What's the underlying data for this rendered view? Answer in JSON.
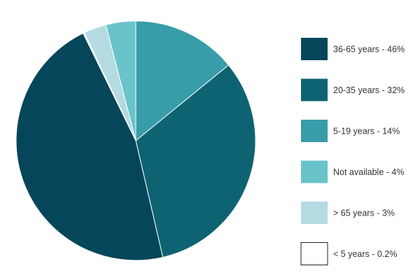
{
  "chart_data": {
    "type": "pie",
    "title": "",
    "legend_position": "right",
    "start_angle_deg": 0,
    "direction": "clockwise",
    "slices": [
      {
        "label": "5-19 years - 14%",
        "value": 14,
        "color": "#389ca9"
      },
      {
        "label": "20-35 years - 32%",
        "value": 32,
        "color": "#0e6373"
      },
      {
        "label": "36-65 years - 46%",
        "value": 46,
        "color": "#05465a"
      },
      {
        "label": "< 5 years - 0.2%",
        "value": 0.2,
        "color": "#ffffff"
      },
      {
        "label": "> 65 years - 3%",
        "value": 3,
        "color": "#b3dbe1"
      },
      {
        "label": "Not available - 4%",
        "value": 4,
        "color": "#6ac3cb"
      }
    ],
    "legend": [
      {
        "label": "36-65 years - 46%",
        "color": "#05465a"
      },
      {
        "label": "20-35 years - 32%",
        "color": "#0e6373"
      },
      {
        "label": "5-19 years - 14%",
        "color": "#389ca9"
      },
      {
        "label": "Not available - 4%",
        "color": "#6ac3cb"
      },
      {
        "label": "> 65 years - 3%",
        "color": "#b3dbe1"
      },
      {
        "label": "< 5 years - 0.2%",
        "color": "#ffffff"
      }
    ]
  }
}
